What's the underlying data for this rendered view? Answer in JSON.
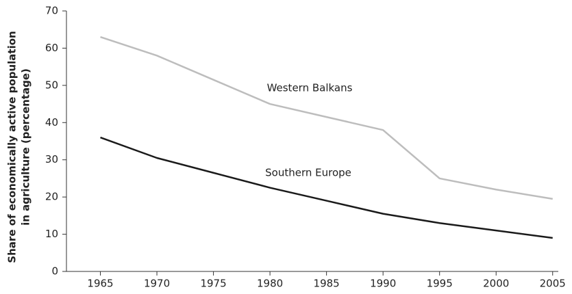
{
  "chart_data": {
    "type": "line",
    "ylabel": [
      "Share of economically active population",
      "in agriculture (percentage)"
    ],
    "x": [
      1965,
      1970,
      1975,
      1980,
      1985,
      1990,
      1995,
      2000,
      2005
    ],
    "series": [
      {
        "name": "Western Balkans",
        "color": "#bdbdbd",
        "values": [
          63,
          58,
          51.5,
          45,
          41.5,
          38,
          25,
          22,
          19.5
        ]
      },
      {
        "name": "Southern Europe",
        "color": "#1a1a1a",
        "values": [
          36,
          30.5,
          26.5,
          22.5,
          19,
          15.5,
          13,
          11,
          9
        ]
      }
    ],
    "xlim": [
      1962,
      2005.5
    ],
    "xticks": [
      1965,
      1970,
      1975,
      1980,
      1985,
      1990,
      1995,
      2000,
      2005
    ],
    "ylim": [
      0,
      70
    ],
    "yticks": [
      0,
      10,
      20,
      30,
      40,
      50,
      60,
      70
    ],
    "grid": false
  }
}
